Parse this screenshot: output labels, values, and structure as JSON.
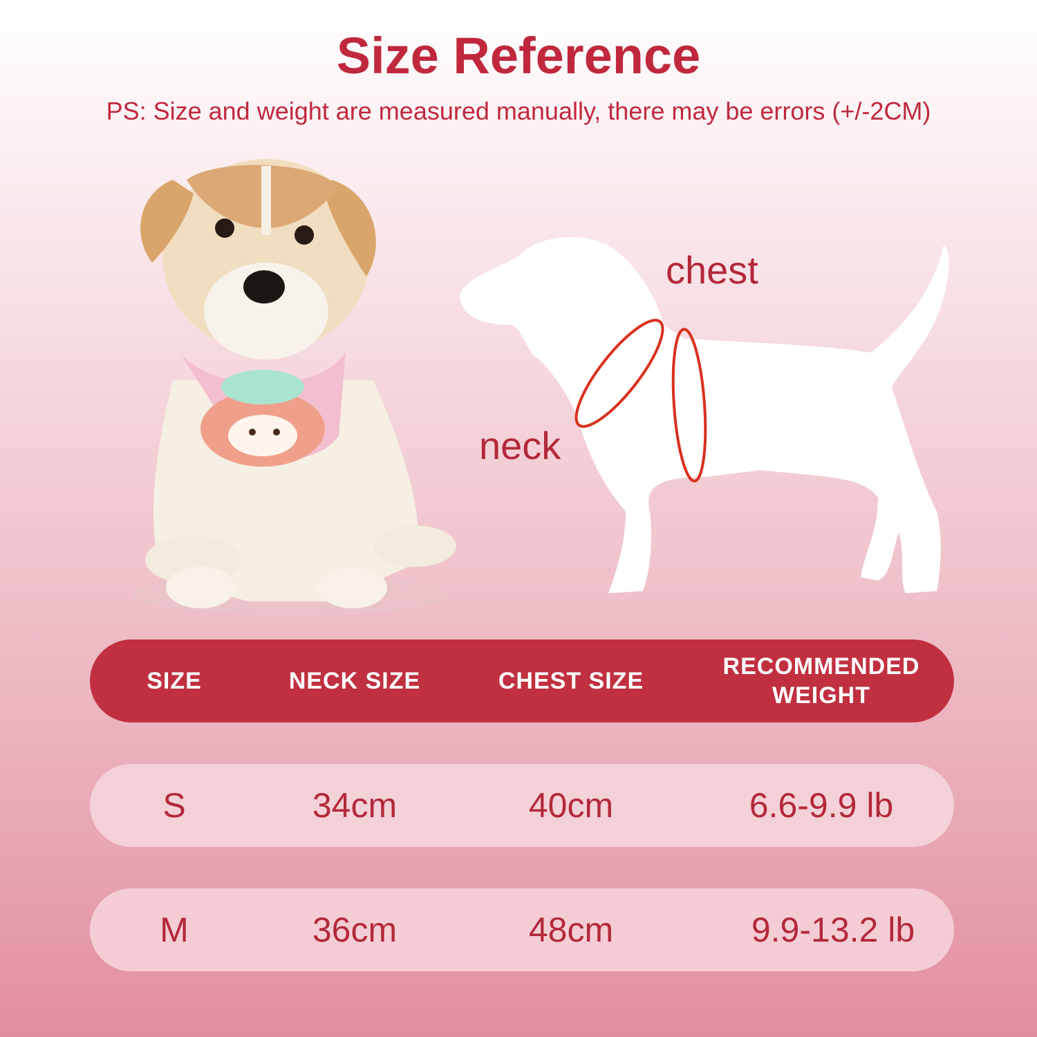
{
  "title": "Size Reference",
  "subtitle": "PS: Size and weight are measured manually, there may be errors (+/-2CM)",
  "diagram": {
    "chest_label": "chest",
    "neck_label": "neck"
  },
  "colors": {
    "accent": "#c03040",
    "row_bg": "#f4d1d7",
    "measure_line": "#d9301e"
  },
  "table": {
    "headers": [
      "SIZE",
      "NECK SIZE",
      "CHEST SIZE",
      "RECOMMENDED WEIGHT"
    ],
    "rows": [
      {
        "size": "S",
        "neck": "34cm",
        "chest": "40cm",
        "weight": "6.6-9.9 lb"
      },
      {
        "size": "M",
        "neck": "36cm",
        "chest": "48cm",
        "weight": "9.9-13.2 lb"
      }
    ]
  }
}
